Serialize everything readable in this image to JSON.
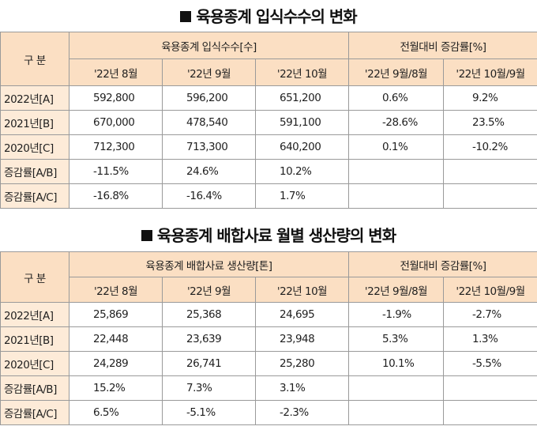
{
  "section1": {
    "title": "육용종계 입식수수의 변화",
    "corner_label": "구 분",
    "group_label": "육용종계 입식수수[수]",
    "rate_group_label": "전월대비 증감률[%]",
    "months": [
      "'22년 8월",
      "'22년 9월",
      "'22년 10월"
    ],
    "rate_headers": [
      "'22년 9월/8월",
      "'22년 10월/9월"
    ],
    "rows": [
      {
        "label": "2022년[A]",
        "values": [
          "592,800",
          "596,200",
          "651,200"
        ],
        "rates": [
          "0.6%",
          "9.2%"
        ]
      },
      {
        "label": "2021년[B]",
        "values": [
          "670,000",
          "478,540",
          "591,100"
        ],
        "rates": [
          "-28.6%",
          "23.5%"
        ]
      },
      {
        "label": "2020년[C]",
        "values": [
          "712,300",
          "713,300",
          "640,200"
        ],
        "rates": [
          "0.1%",
          "-10.2%"
        ]
      },
      {
        "label": "증감률[A/B]",
        "values": [
          "-11.5%",
          "24.6%",
          "10.2%"
        ]
      },
      {
        "label": "증감률[A/C]",
        "values": [
          "-16.8%",
          "-16.4%",
          "1.7%"
        ]
      }
    ]
  },
  "section2": {
    "title": "육용종계 배합사료 월별 생산량의 변화",
    "corner_label": "구 분",
    "group_label": "육용종계 배합사료 생산량[톤]",
    "rate_group_label": "전월대비 증감률[%]",
    "months": [
      "'22년 8월",
      "'22년 9월",
      "'22년 10월"
    ],
    "rate_headers": [
      "'22년 9월/8월",
      "'22년 10월/9월"
    ],
    "rows": [
      {
        "label": "2022년[A]",
        "values": [
          "25,869",
          "25,368",
          "24,695"
        ],
        "rates": [
          "-1.9%",
          "-2.7%"
        ]
      },
      {
        "label": "2021년[B]",
        "values": [
          "22,448",
          "23,639",
          "23,948"
        ],
        "rates": [
          "5.3%",
          "1.3%"
        ]
      },
      {
        "label": "2020년[C]",
        "values": [
          "24,289",
          "26,741",
          "25,280"
        ],
        "rates": [
          "10.1%",
          "-5.5%"
        ]
      },
      {
        "label": "증감률[A/B]",
        "values": [
          "15.2%",
          "7.3%",
          "3.1%"
        ]
      },
      {
        "label": "증감률[A/C]",
        "values": [
          "6.5%",
          "-5.1%",
          "-2.3%"
        ]
      }
    ]
  }
}
